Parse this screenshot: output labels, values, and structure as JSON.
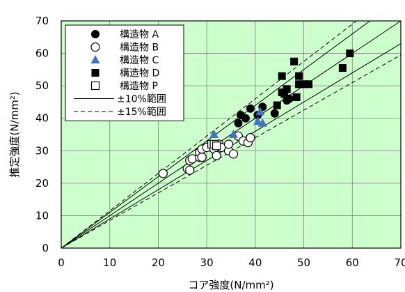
{
  "chart_data": {
    "type": "scatter",
    "xlabel": "コア強度(N/mm²)",
    "ylabel": "推定強度(N/mm²)",
    "xlim": [
      0,
      70
    ],
    "ylim": [
      0,
      70
    ],
    "xticks": [
      0,
      10,
      20,
      30,
      40,
      50,
      60,
      70
    ],
    "yticks": [
      0,
      10,
      20,
      30,
      40,
      50,
      60,
      70
    ],
    "grid": true,
    "background_color": "#ccffcc",
    "legend_position": "top-left",
    "series": [
      {
        "name": "構造物 A",
        "marker": "filled-circle",
        "color": "#000000",
        "points": [
          [
            36.5,
            38.5
          ],
          [
            37.0,
            41.0
          ],
          [
            38.0,
            40.0
          ],
          [
            39.0,
            43.0
          ],
          [
            40.5,
            41.0
          ],
          [
            41.5,
            43.5
          ],
          [
            44.0,
            41.5
          ],
          [
            46.5,
            45.5
          ],
          [
            47.0,
            46.0
          ]
        ]
      },
      {
        "name": "構造物 B",
        "marker": "open-circle",
        "color": "#000000",
        "points": [
          [
            21.0,
            23.0
          ],
          [
            26.0,
            24.5
          ],
          [
            26.5,
            24.0
          ],
          [
            26.5,
            27.0
          ],
          [
            27.0,
            27.5
          ],
          [
            28.5,
            28.0
          ],
          [
            28.5,
            29.5
          ],
          [
            29.0,
            30.5
          ],
          [
            30.0,
            31.0
          ],
          [
            31.5,
            30.5
          ],
          [
            32.0,
            28.5
          ],
          [
            32.5,
            32.0
          ],
          [
            33.0,
            31.0
          ],
          [
            34.5,
            30.0
          ],
          [
            34.5,
            32.0
          ],
          [
            35.5,
            29.0
          ],
          [
            36.5,
            34.5
          ],
          [
            37.5,
            33.0
          ],
          [
            38.5,
            32.5
          ],
          [
            39.0,
            34.0
          ],
          [
            29.0,
            28.0
          ]
        ]
      },
      {
        "name": "構造物 C",
        "marker": "filled-triangle",
        "color": "#4472c4",
        "points": [
          [
            31.5,
            35.0
          ],
          [
            35.5,
            35.0
          ],
          [
            40.5,
            39.0
          ],
          [
            41.0,
            42.0
          ],
          [
            41.5,
            38.5
          ]
        ]
      },
      {
        "name": "構造物 D",
        "marker": "filled-square",
        "color": "#000000",
        "points": [
          [
            44.5,
            44.0
          ],
          [
            45.5,
            48.0
          ],
          [
            45.5,
            53.0
          ],
          [
            46.0,
            47.5
          ],
          [
            46.5,
            49.0
          ],
          [
            48.0,
            57.5
          ],
          [
            48.5,
            46.5
          ],
          [
            49.0,
            50.5
          ],
          [
            49.0,
            53.0
          ],
          [
            50.0,
            50.5
          ],
          [
            51.0,
            50.5
          ],
          [
            58.0,
            55.5
          ],
          [
            59.5,
            60.0
          ]
        ]
      },
      {
        "name": "構造物 P",
        "marker": "open-square",
        "color": "#000000",
        "points": [
          [
            31.0,
            32.0
          ],
          [
            31.5,
            32.0
          ],
          [
            32.0,
            31.5
          ]
        ]
      }
    ],
    "reference_lines": [
      {
        "name": "±10%範囲",
        "style": "solid",
        "slopes": [
          1.0,
          0.9,
          1.1
        ]
      },
      {
        "name": "±15%範囲",
        "style": "dashed",
        "slopes": [
          0.85,
          1.15
        ]
      }
    ]
  }
}
